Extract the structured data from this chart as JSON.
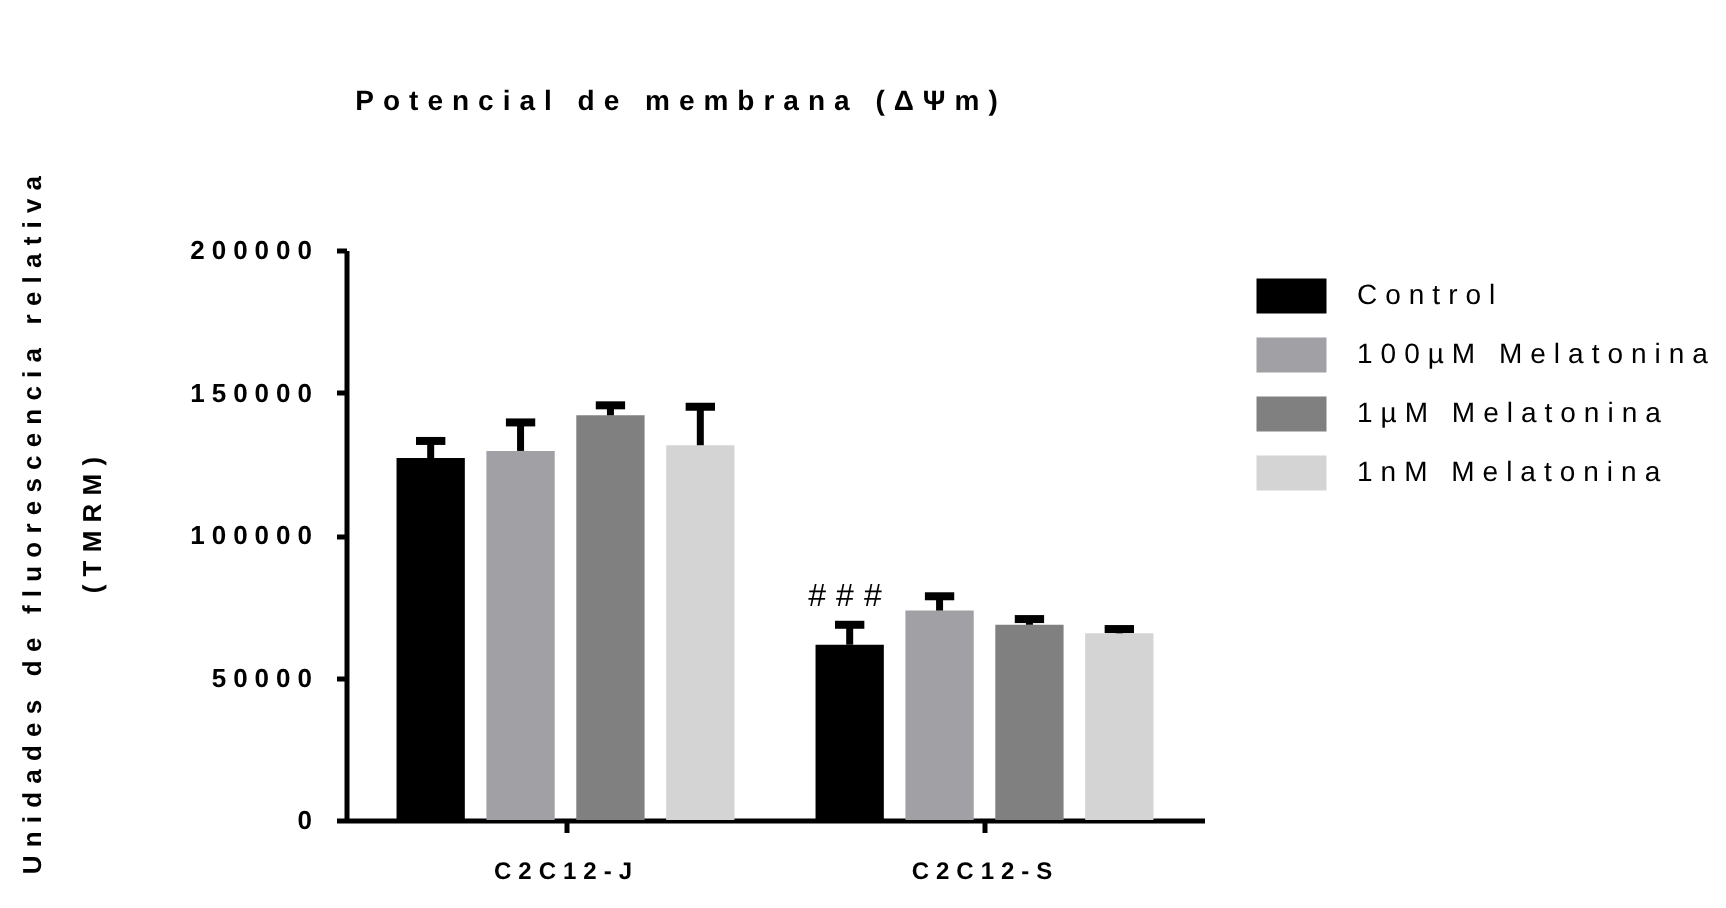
{
  "chart_data": {
    "type": "bar",
    "title": "Potencial de membrana (ΔΨm)",
    "ylabel": "Unidades de fluorescencia relativa\n(TMRM)",
    "categories": [
      "C2C12-J",
      "C2C12-S"
    ],
    "series": [
      {
        "name": "Control",
        "color": "#000000",
        "values": [
          127000,
          61500
        ],
        "errors": [
          [
            127000,
            133000
          ],
          [
            61500,
            68500
          ]
        ]
      },
      {
        "name": "100µM Melatonina",
        "color": "#a1a1a5",
        "values": [
          129500,
          73500
        ],
        "errors": [
          [
            129500,
            139500
          ],
          [
            73500,
            78500
          ]
        ]
      },
      {
        "name": "1µM Melatonina",
        "color": "#808080",
        "values": [
          142000,
          68500
        ],
        "errors": [
          [
            142000,
            145500
          ],
          [
            68500,
            70500
          ]
        ]
      },
      {
        "name": "1nM Melatonina",
        "color": "#d4d4d4",
        "values": [
          131500,
          65500
        ],
        "errors": [
          [
            131500,
            145000
          ],
          [
            65500,
            67000
          ]
        ]
      }
    ],
    "ylim": [
      0,
      200000
    ],
    "yticks": [
      0,
      50000,
      100000,
      150000,
      200000
    ],
    "legend": "right",
    "annotations": [
      "###"
    ]
  }
}
